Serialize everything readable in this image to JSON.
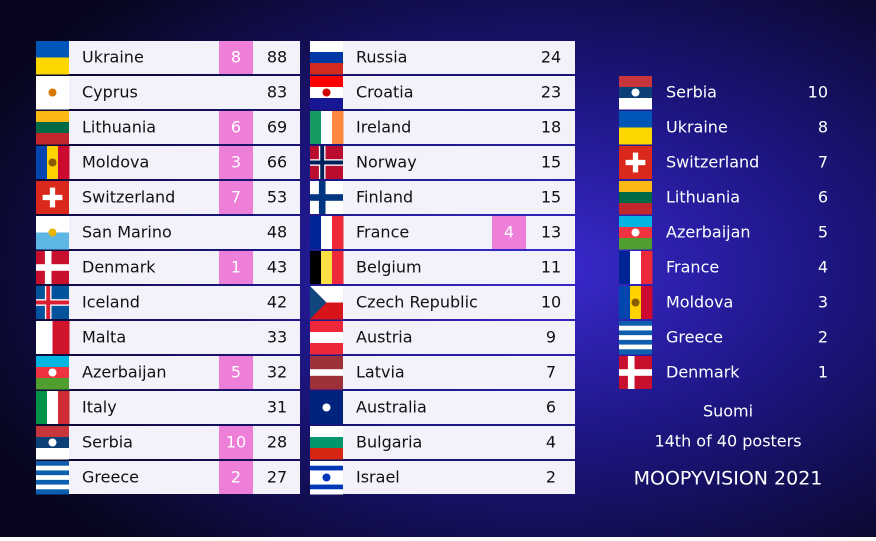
{
  "left_board": {
    "rows": [
      {
        "country": "Ukraine",
        "points": 8,
        "total": 88
      },
      {
        "country": "Cyprus",
        "total": 83
      },
      {
        "country": "Lithuania",
        "points": 6,
        "total": 69
      },
      {
        "country": "Moldova",
        "points": 3,
        "total": 66
      },
      {
        "country": "Switzerland",
        "points": 7,
        "total": 53
      },
      {
        "country": "San Marino",
        "total": 48
      },
      {
        "country": "Denmark",
        "points": 1,
        "total": 43
      },
      {
        "country": "Iceland",
        "total": 42
      },
      {
        "country": "Malta",
        "total": 33
      },
      {
        "country": "Azerbaijan",
        "points": 5,
        "total": 32
      },
      {
        "country": "Italy",
        "total": 31
      },
      {
        "country": "Serbia",
        "points": 10,
        "total": 28
      },
      {
        "country": "Greece",
        "points": 2,
        "total": 27
      }
    ]
  },
  "right_board": {
    "rows": [
      {
        "country": "Russia",
        "total": 24
      },
      {
        "country": "Croatia",
        "total": 23
      },
      {
        "country": "Ireland",
        "total": 18
      },
      {
        "country": "Norway",
        "total": 15
      },
      {
        "country": "Finland",
        "total": 15
      },
      {
        "country": "France",
        "points": 4,
        "total": 13
      },
      {
        "country": "Belgium",
        "total": 11
      },
      {
        "country": "Czech Republic",
        "total": 10
      },
      {
        "country": "Austria",
        "total": 9
      },
      {
        "country": "Latvia",
        "total": 7
      },
      {
        "country": "Australia",
        "total": 6
      },
      {
        "country": "Bulgaria",
        "total": 4
      },
      {
        "country": "Israel",
        "total": 2
      }
    ]
  },
  "given_points": {
    "rows": [
      {
        "country": "Serbia",
        "points": 10
      },
      {
        "country": "Ukraine",
        "points": 8
      },
      {
        "country": "Switzerland",
        "points": 7
      },
      {
        "country": "Lithuania",
        "points": 6
      },
      {
        "country": "Azerbaijan",
        "points": 5
      },
      {
        "country": "France",
        "points": 4
      },
      {
        "country": "Moldova",
        "points": 3
      },
      {
        "country": "Greece",
        "points": 2
      },
      {
        "country": "Denmark",
        "points": 1
      }
    ]
  },
  "footer": {
    "voter": "Suomi",
    "rank": "14th of 40 posters",
    "brand": "MOOPYVISION 2021"
  }
}
